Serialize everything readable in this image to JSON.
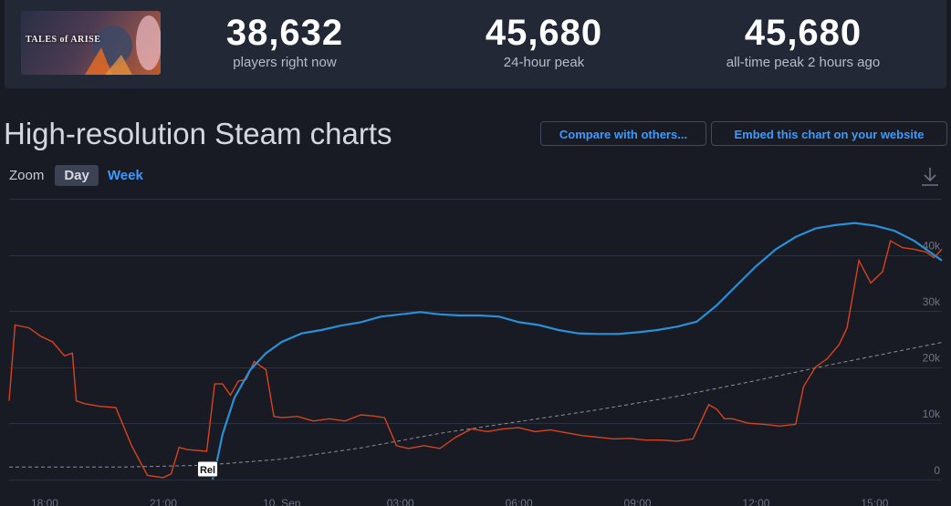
{
  "game": {
    "thumbnail_text": "TALES of ARISE"
  },
  "stats": [
    {
      "value": "38,632",
      "label": "players right now"
    },
    {
      "value": "45,680",
      "label": "24-hour peak"
    },
    {
      "value": "45,680",
      "label": "all-time peak 2 hours ago"
    }
  ],
  "section": {
    "title": "High-resolution Steam charts",
    "compare_label": "Compare with others...",
    "embed_label": "Embed this chart on your website"
  },
  "zoom": {
    "label": "Zoom",
    "day_label": "Day",
    "week_label": "Week",
    "selected": "Day"
  },
  "icons": {
    "download": "download-icon"
  },
  "colors": {
    "players_line": "#2b8fd6",
    "twitch_line": "#d9431c",
    "trend_line": "#8a8f99",
    "accent": "#3d9aff"
  },
  "chart_data": {
    "type": "line",
    "x_tick_labels": [
      "18:00",
      "21:00",
      "10. Sep",
      "03:00",
      "06:00",
      "09:00",
      "12:00",
      "15:00"
    ],
    "x_ticks_hours": [
      0,
      3,
      6,
      9,
      12,
      15,
      18,
      21
    ],
    "xlim_hours": [
      -0.9,
      22.7
    ],
    "y_tick_labels": [
      "0",
      "10k",
      "20k",
      "30k",
      "40k"
    ],
    "y_ticks": [
      0,
      10000,
      20000,
      30000,
      40000
    ],
    "ylim": [
      -1500,
      50000
    ],
    "grid": true,
    "annotation": {
      "label": "Rel",
      "x_hour": 4.1
    },
    "series": [
      {
        "key": "players",
        "x_hours": [
          4.25,
          4.35,
          4.5,
          4.8,
          5.2,
          5.6,
          6.0,
          6.5,
          7.0,
          7.5,
          8.0,
          8.5,
          9.0,
          9.5,
          10.0,
          10.5,
          11.0,
          11.5,
          12.0,
          12.5,
          13.0,
          13.5,
          14.0,
          14.5,
          15.0,
          15.5,
          16.0,
          16.5,
          17.0,
          17.5,
          18.0,
          18.5,
          19.0,
          19.5,
          20.0,
          20.5,
          21.0,
          21.5,
          22.0,
          22.5,
          22.7
        ],
        "values": [
          0,
          3000,
          8000,
          14500,
          19500,
          22500,
          24500,
          26000,
          26600,
          27400,
          28000,
          29000,
          29400,
          29800,
          29400,
          29200,
          29200,
          29000,
          28000,
          27500,
          26600,
          26000,
          25900,
          25900,
          26200,
          26600,
          27200,
          28100,
          31000,
          34500,
          38000,
          41000,
          43200,
          44700,
          45300,
          45680,
          45200,
          44300,
          42500,
          40000,
          39000
        ]
      },
      {
        "key": "twitch",
        "x_hours": [
          -0.9,
          -0.75,
          -0.4,
          -0.1,
          0.2,
          0.5,
          0.7,
          0.8,
          1.0,
          1.4,
          1.8,
          2.2,
          2.6,
          3.0,
          3.2,
          3.4,
          3.6,
          4.1,
          4.3,
          4.5,
          4.7,
          4.9,
          5.1,
          5.3,
          5.6,
          5.8,
          6.0,
          6.4,
          6.8,
          7.2,
          7.6,
          8.0,
          8.3,
          8.6,
          8.9,
          9.2,
          9.6,
          10.0,
          10.4,
          10.8,
          11.2,
          11.6,
          12.0,
          12.4,
          12.8,
          13.2,
          13.6,
          14.0,
          14.4,
          14.8,
          15.2,
          15.6,
          16.0,
          16.4,
          16.8,
          17.0,
          17.2,
          17.4,
          17.8,
          18.2,
          18.6,
          19.0,
          19.2,
          19.5,
          19.8,
          20.1,
          20.3,
          20.6,
          20.9,
          21.2,
          21.4,
          21.7,
          22.0,
          22.3,
          22.5,
          22.7
        ],
        "values": [
          14000,
          27500,
          27000,
          25500,
          24500,
          22000,
          22500,
          14000,
          13500,
          13000,
          12800,
          6000,
          700,
          300,
          1000,
          5700,
          5300,
          5000,
          17000,
          17000,
          15000,
          17500,
          17800,
          21000,
          19500,
          11200,
          11000,
          11200,
          10400,
          10800,
          10400,
          11500,
          11300,
          11000,
          6000,
          5500,
          6000,
          5500,
          7500,
          9000,
          8500,
          9000,
          9200,
          8500,
          8800,
          8300,
          7800,
          7500,
          7200,
          7300,
          7000,
          7000,
          6800,
          7200,
          13300,
          12500,
          10800,
          10800,
          10000,
          9800,
          9500,
          9800,
          16500,
          20000,
          21500,
          24000,
          27000,
          39000,
          35000,
          37000,
          42500,
          41300,
          41000,
          40500,
          39500,
          41000
        ]
      },
      {
        "key": "trend",
        "x_hours": [
          -0.9,
          2,
          4,
          6,
          8,
          10,
          12,
          14,
          16,
          18,
          20,
          22.7
        ],
        "values": [
          2200,
          2200,
          2500,
          3600,
          5600,
          8200,
          10300,
          12400,
          14800,
          17600,
          20600,
          24400
        ]
      }
    ]
  }
}
